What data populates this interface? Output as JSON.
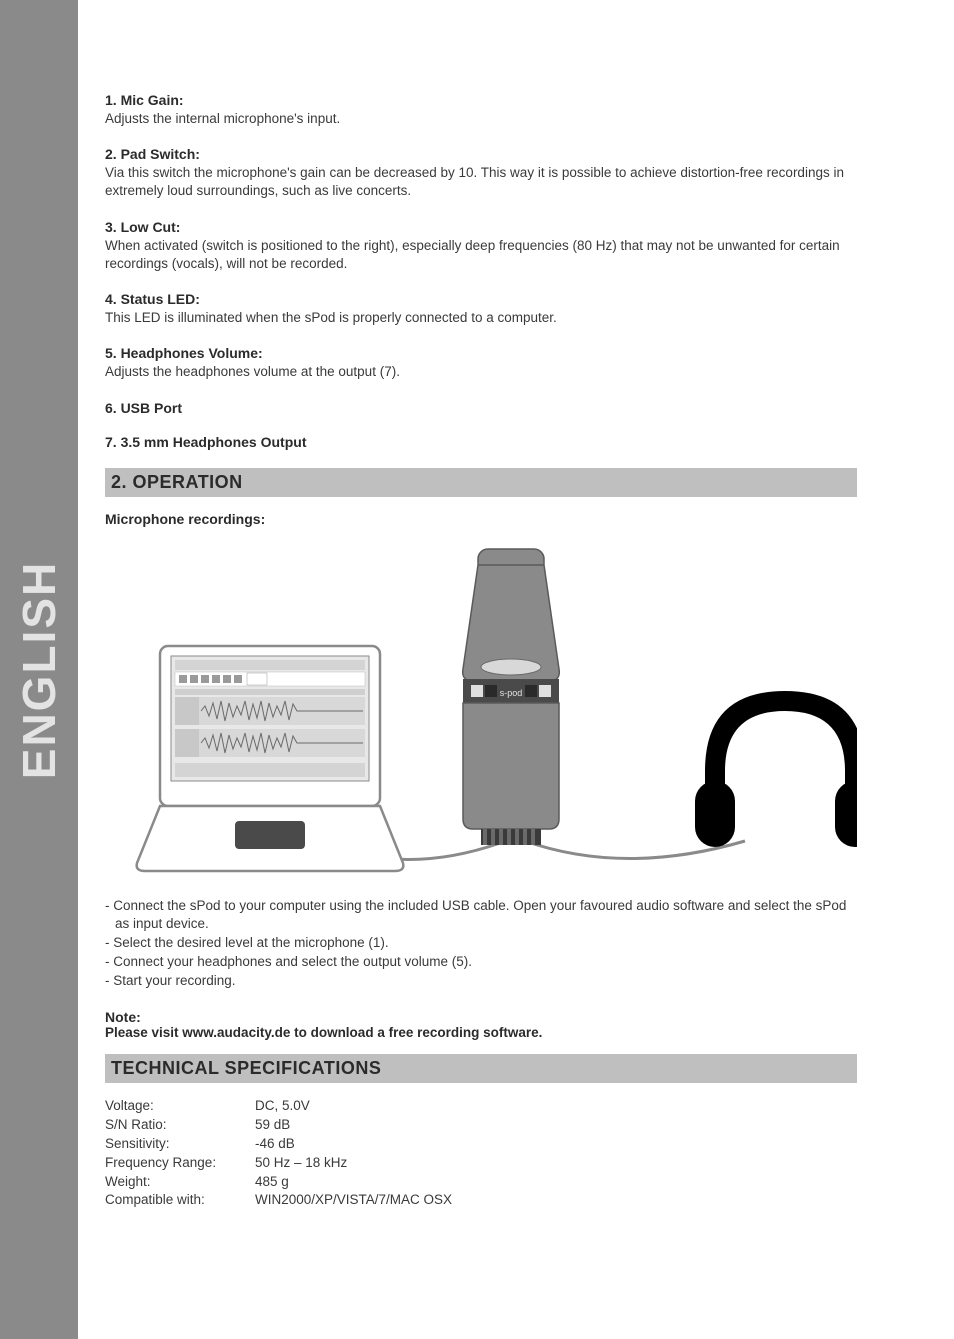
{
  "sidebar": {
    "language": "ENGLISH"
  },
  "controls": [
    {
      "title": "1. Mic Gain:",
      "desc": "Adjusts the internal microphone's input."
    },
    {
      "title": "2. Pad Switch:",
      "desc": "Via this switch the microphone's gain can be decreased by 10. This way it is possible to achieve distortion-free recordings in extremely loud surroundings, such as live concerts."
    },
    {
      "title": "3. Low Cut:",
      "desc": "When activated (switch is positioned to the right), especially deep frequencies (80 Hz) that may not be unwanted for certain recordings (vocals), will not be recorded."
    },
    {
      "title": "4. Status LED:",
      "desc": "This LED is illuminated when the sPod is properly connected to a computer."
    },
    {
      "title": "5. Headphones Volume:",
      "desc": "Adjusts the headphones volume at the output (7)."
    },
    {
      "title": "6. USB Port",
      "desc": ""
    },
    {
      "title": "7. 3.5 mm Headphones Output",
      "desc": ""
    }
  ],
  "operation": {
    "heading": "2. OPERATION",
    "subhead": "Microphone recordings:",
    "illustration": {
      "laptop_fill": "#ffffff",
      "laptop_stroke": "#8a8a8a",
      "screen_fill": "#e8e8e8",
      "waveform_color": "#8a8a8a",
      "mic_body": "#8a8a8a",
      "mic_dark": "#4a4a4a",
      "headphone_color": "#000000",
      "cable_color": "#8a8a8a",
      "spod_label": "s-pod"
    },
    "steps": [
      "- Connect the sPod to your computer using the included USB cable. Open your favoured audio software and select the sPod as input device.",
      "- Select the desired level at the microphone (1).",
      "- Connect your headphones and select the output volume (5).",
      "- Start your recording."
    ],
    "note_title": "Note:",
    "note_text": "Please visit www.audacity.de to download a free recording software."
  },
  "specs": {
    "heading": "TECHNICAL SPECIFICATIONS",
    "rows": [
      {
        "label": "Voltage:",
        "value": "DC, 5.0V"
      },
      {
        "label": "S/N Ratio:",
        "value": "59 dB"
      },
      {
        "label": "Sensitivity:",
        "value": "-46 dB"
      },
      {
        "label": "Frequency Range:",
        "value": "50 Hz – 18 kHz"
      },
      {
        "label": "Weight:",
        "value": "485 g"
      },
      {
        "label": "Compatible with:",
        "value": "WIN2000/XP/VISTA/7/MAC OSX"
      }
    ]
  }
}
